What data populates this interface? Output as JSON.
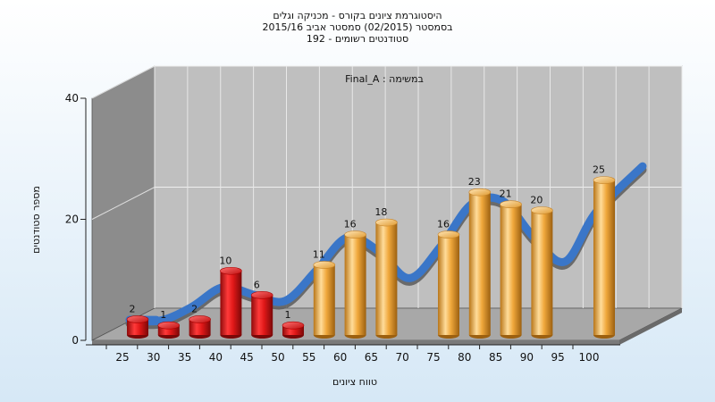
{
  "chart_data": {
    "type": "bar",
    "title": [
      "היסטוגרמת ציונים בקורס - מכניקה וגלים",
      "בסמסטר (02/2015) סמסטר אביב 2015/16",
      "סטודנטים רשומים - 192"
    ],
    "series_label": "במשימה : Final_A",
    "xlabel": "טווח ציונים",
    "ylabel": "מספר סטודנטים",
    "ylim": [
      0,
      40
    ],
    "yticks": [
      0,
      20,
      40
    ],
    "categories": [
      "25",
      "30",
      "35",
      "40",
      "45",
      "50",
      "55",
      "60",
      "65",
      "70",
      "75",
      "80",
      "85",
      "90",
      "95",
      "100"
    ],
    "values": [
      2,
      1,
      2,
      10,
      6,
      1,
      11,
      16,
      18,
      0,
      16,
      23,
      21,
      20,
      0,
      25
    ],
    "data_labels": [
      "2",
      "1",
      "2",
      "10",
      "6",
      "1",
      "11",
      "16",
      "18",
      "",
      "16",
      "23",
      "21",
      "20",
      "",
      "25"
    ],
    "pass_threshold": 55,
    "colors": {
      "fail": "#e02020",
      "pass": "#f0a83c",
      "curve_front": "#3a76c8",
      "curve_back": "#606060",
      "back_wall": "#bfbfbf",
      "side_wall": "#8c8c8c",
      "floor": "#a8a8a8"
    },
    "grid": true
  }
}
